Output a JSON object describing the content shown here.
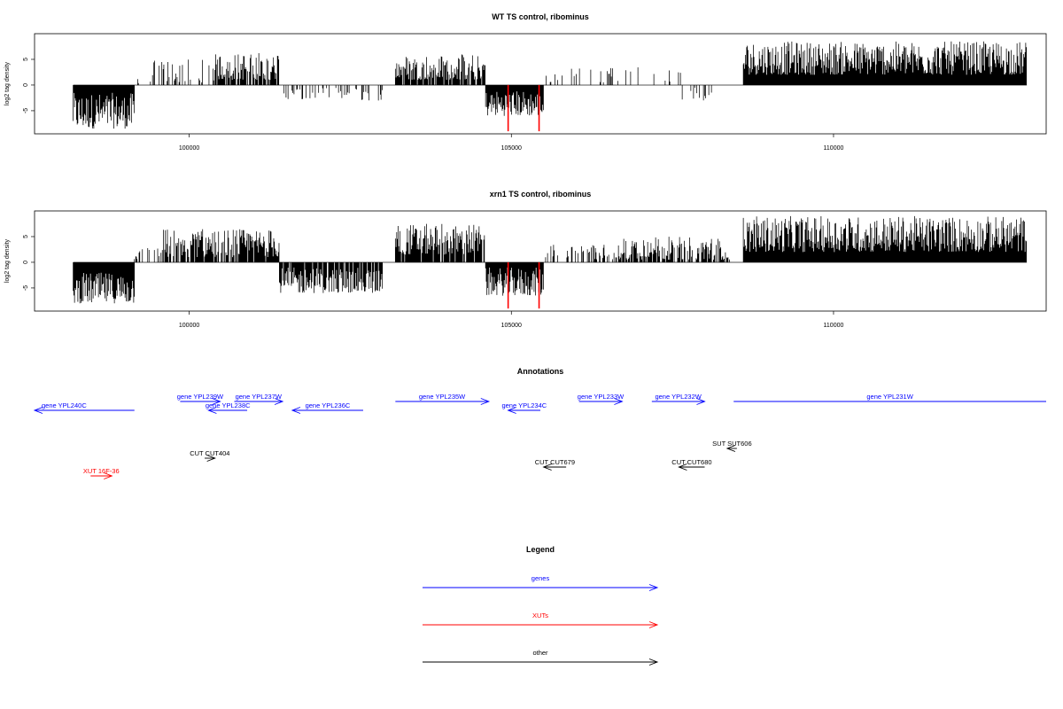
{
  "chart_data": [
    {
      "type": "bar",
      "title": "WT TS control, ribominus",
      "ylabel": "log2 tag density",
      "xlabel": "",
      "xlim": [
        97600,
        113300
      ],
      "ylim": [
        -9.5,
        10
      ],
      "xticks": [
        100000,
        105000,
        110000
      ],
      "yticks": [
        -5,
        0,
        5
      ],
      "axis_color": "#000000",
      "bar_color": "#000000",
      "highlight_color": "#ff0000",
      "segments": [
        {
          "from": 98200,
          "to": 99150,
          "min": -8.5,
          "max": -1.5,
          "sign": -1,
          "density": 1.0
        },
        {
          "from": 99150,
          "to": 99400,
          "min": 0.3,
          "max": 1.5,
          "sign": 1,
          "density": 0.15
        },
        {
          "from": 99400,
          "to": 100400,
          "min": 0.5,
          "max": 5.0,
          "sign": 1,
          "density": 0.35
        },
        {
          "from": 100400,
          "to": 101400,
          "min": 1.0,
          "max": 6.5,
          "sign": 1,
          "density": 0.8
        },
        {
          "from": 101400,
          "to": 103000,
          "min": -3.0,
          "max": -0.5,
          "sign": -1,
          "density": 0.3
        },
        {
          "from": 103200,
          "to": 104600,
          "min": 1.0,
          "max": 6.0,
          "sign": 1,
          "density": 0.85
        },
        {
          "from": 104600,
          "to": 105500,
          "min": -6.0,
          "max": -1.0,
          "sign": -1,
          "density": 1.0
        },
        {
          "from": 105500,
          "to": 107700,
          "min": 0.5,
          "max": 3.5,
          "sign": 1,
          "density": 0.1
        },
        {
          "from": 107600,
          "to": 108200,
          "min": -3.0,
          "max": -0.5,
          "sign": -1,
          "density": 0.3
        },
        {
          "from": 108600,
          "to": 113000,
          "min": 2.0,
          "max": 8.5,
          "sign": 1,
          "density": 1.0
        }
      ],
      "highlights": [
        {
          "x": 104950,
          "value": -9.0
        },
        {
          "x": 105430,
          "value": -9.0
        }
      ]
    },
    {
      "type": "bar",
      "title": "xrn1 TS control, ribominus",
      "ylabel": "log2 tag density",
      "xlabel": "",
      "xlim": [
        97600,
        113300
      ],
      "ylim": [
        -9.5,
        10
      ],
      "xticks": [
        100000,
        105000,
        110000
      ],
      "yticks": [
        -5,
        0,
        5
      ],
      "axis_color": "#000000",
      "bar_color": "#000000",
      "highlight_color": "#ff0000",
      "segments": [
        {
          "from": 98200,
          "to": 99150,
          "min": -8.0,
          "max": -2.0,
          "sign": -1,
          "density": 1.0
        },
        {
          "from": 99150,
          "to": 99600,
          "min": 0.5,
          "max": 3.0,
          "sign": 1,
          "density": 0.3
        },
        {
          "from": 99600,
          "to": 101400,
          "min": 1.0,
          "max": 6.5,
          "sign": 1,
          "density": 0.85
        },
        {
          "from": 101400,
          "to": 103000,
          "min": -6.0,
          "max": -1.0,
          "sign": -1,
          "density": 0.9
        },
        {
          "from": 103200,
          "to": 104600,
          "min": 1.5,
          "max": 7.5,
          "sign": 1,
          "density": 0.9
        },
        {
          "from": 104600,
          "to": 105500,
          "min": -6.5,
          "max": -1.0,
          "sign": -1,
          "density": 1.0
        },
        {
          "from": 105500,
          "to": 106600,
          "min": 0.5,
          "max": 3.5,
          "sign": 1,
          "density": 0.35
        },
        {
          "from": 106600,
          "to": 108400,
          "min": 0.5,
          "max": 5.0,
          "sign": 1,
          "density": 0.7
        },
        {
          "from": 108600,
          "to": 113000,
          "min": 2.0,
          "max": 9.0,
          "sign": 1,
          "density": 1.0
        }
      ],
      "highlights": [
        {
          "x": 104950,
          "value": -9.0
        },
        {
          "x": 105430,
          "value": -9.0
        }
      ]
    }
  ],
  "annotations": {
    "title": "Annotations",
    "xlim": [
      97600,
      113300
    ],
    "items": [
      {
        "label": "gene YPL240C",
        "kind": "gene",
        "color": "#0000ff",
        "from": 97600,
        "to": 99150,
        "direction": "minus",
        "row": 1,
        "label_pos": "start"
      },
      {
        "label": "gene YPL239W",
        "kind": "gene",
        "color": "#0000ff",
        "from": 99860,
        "to": 100480,
        "direction": "plus",
        "row": 0
      },
      {
        "label": "gene YPL237W",
        "kind": "gene",
        "color": "#0000ff",
        "from": 100700,
        "to": 101450,
        "direction": "plus",
        "row": 0
      },
      {
        "label": "gene YPL238C",
        "kind": "gene",
        "color": "#0000ff",
        "from": 100300,
        "to": 100900,
        "direction": "minus",
        "row": 1
      },
      {
        "label": "gene YPL236C",
        "kind": "gene",
        "color": "#0000ff",
        "from": 101600,
        "to": 102700,
        "direction": "minus",
        "row": 1
      },
      {
        "label": "gene YPL235W",
        "kind": "gene",
        "color": "#0000ff",
        "from": 103200,
        "to": 104650,
        "direction": "plus",
        "row": 0
      },
      {
        "label": "gene YPL234C",
        "kind": "gene",
        "color": "#0000ff",
        "from": 104950,
        "to": 105450,
        "direction": "minus",
        "row": 1
      },
      {
        "label": "gene YPL233W",
        "kind": "gene",
        "color": "#0000ff",
        "from": 106050,
        "to": 106720,
        "direction": "plus",
        "row": 0
      },
      {
        "label": "gene YPL232W",
        "kind": "gene",
        "color": "#0000ff",
        "from": 107180,
        "to": 108000,
        "direction": "plus",
        "row": 0
      },
      {
        "label": "gene YPL231W",
        "kind": "gene",
        "color": "#0000ff",
        "from": 108450,
        "to": 113300,
        "direction": "plus",
        "row": 0
      },
      {
        "label": "SUT SUT606",
        "kind": "other",
        "color": "#000000",
        "from": 108350,
        "to": 108500,
        "direction": "minus",
        "row": 2
      },
      {
        "label": "CUT CUT404",
        "kind": "other",
        "color": "#000000",
        "from": 100240,
        "to": 100400,
        "direction": "plus",
        "row": 3
      },
      {
        "label": "CUT CUT679",
        "kind": "other",
        "color": "#000000",
        "from": 105500,
        "to": 105850,
        "direction": "minus",
        "row": 4
      },
      {
        "label": "CUT CUT680",
        "kind": "other",
        "color": "#000000",
        "from": 107600,
        "to": 108000,
        "direction": "minus",
        "row": 4
      },
      {
        "label": "XUT 16F-36",
        "kind": "xut",
        "color": "#ff0000",
        "from": 98470,
        "to": 98800,
        "direction": "plus",
        "row": 5
      }
    ]
  },
  "legend": {
    "title": "Legend",
    "items": [
      {
        "label": "genes",
        "color": "#0000ff"
      },
      {
        "label": "XUTs",
        "color": "#ff0000"
      },
      {
        "label": "other",
        "color": "#000000"
      }
    ]
  }
}
